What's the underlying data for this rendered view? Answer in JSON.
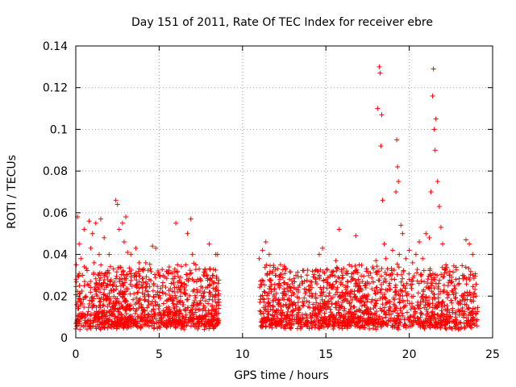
{
  "chart_data": {
    "type": "scatter",
    "title": "Day 151 of 2011, Rate Of TEC Index for receiver ebre",
    "xlabel": "GPS time / hours",
    "ylabel": "ROTI / TECUs",
    "xlim": [
      0,
      25
    ],
    "ylim": [
      0,
      0.14
    ],
    "x_ticks": [
      "0",
      "5",
      "10",
      "15",
      "20",
      "25"
    ],
    "y_ticks": [
      "0",
      "0.02",
      "0.04",
      "0.06",
      "0.08",
      "0.1",
      "0.12",
      "0.14"
    ],
    "grid": true,
    "marker": "+",
    "color": "#ff0000",
    "series": [
      {
        "name": "ROTI",
        "points": [
          [
            0.1,
            0.058
          ],
          [
            0.2,
            0.045
          ],
          [
            0.3,
            0.038
          ],
          [
            0.4,
            0.03
          ],
          [
            0.5,
            0.052
          ],
          [
            0.6,
            0.02
          ],
          [
            0.8,
            0.056
          ],
          [
            0.9,
            0.043
          ],
          [
            1.0,
            0.05
          ],
          [
            1.1,
            0.036
          ],
          [
            1.2,
            0.055
          ],
          [
            1.4,
            0.04
          ],
          [
            1.5,
            0.057
          ],
          [
            1.7,
            0.048
          ],
          [
            1.8,
            0.031
          ],
          [
            2.0,
            0.04
          ],
          [
            2.2,
            0.025
          ],
          [
            2.4,
            0.066
          ],
          [
            2.5,
            0.064
          ],
          [
            2.6,
            0.052
          ],
          [
            2.8,
            0.055
          ],
          [
            2.9,
            0.046
          ],
          [
            3.0,
            0.058
          ],
          [
            3.1,
            0.041
          ],
          [
            3.3,
            0.04
          ],
          [
            3.5,
            0.03
          ],
          [
            3.6,
            0.043
          ],
          [
            3.8,
            0.036
          ],
          [
            4.0,
            0.024
          ],
          [
            4.2,
            0.036
          ],
          [
            4.4,
            0.028
          ],
          [
            4.6,
            0.044
          ],
          [
            4.8,
            0.043
          ],
          [
            5.0,
            0.03
          ],
          [
            5.2,
            0.022
          ],
          [
            5.4,
            0.021
          ],
          [
            5.6,
            0.034
          ],
          [
            5.8,
            0.031
          ],
          [
            6.0,
            0.055
          ],
          [
            6.1,
            0.035
          ],
          [
            6.3,
            0.022
          ],
          [
            6.5,
            0.026
          ],
          [
            6.7,
            0.05
          ],
          [
            6.9,
            0.057
          ],
          [
            7.0,
            0.04
          ],
          [
            7.2,
            0.035
          ],
          [
            7.4,
            0.033
          ],
          [
            7.6,
            0.024
          ],
          [
            7.8,
            0.024
          ],
          [
            8.0,
            0.045
          ],
          [
            8.2,
            0.03
          ],
          [
            8.4,
            0.04
          ],
          [
            8.5,
            0.04
          ],
          [
            11.0,
            0.038
          ],
          [
            11.2,
            0.042
          ],
          [
            11.4,
            0.046
          ],
          [
            11.6,
            0.04
          ],
          [
            11.8,
            0.032
          ],
          [
            12.0,
            0.03
          ],
          [
            12.2,
            0.024
          ],
          [
            12.4,
            0.019
          ],
          [
            12.6,
            0.016
          ],
          [
            12.8,
            0.018
          ],
          [
            13.0,
            0.016
          ],
          [
            13.2,
            0.03
          ],
          [
            13.4,
            0.019
          ],
          [
            13.6,
            0.026
          ],
          [
            13.8,
            0.022
          ],
          [
            14.0,
            0.017
          ],
          [
            14.2,
            0.02
          ],
          [
            14.4,
            0.019
          ],
          [
            14.6,
            0.04
          ],
          [
            14.8,
            0.043
          ],
          [
            15.0,
            0.028
          ],
          [
            15.2,
            0.025
          ],
          [
            15.4,
            0.03
          ],
          [
            15.6,
            0.037
          ],
          [
            15.8,
            0.052
          ],
          [
            16.0,
            0.03
          ],
          [
            16.2,
            0.031
          ],
          [
            16.4,
            0.035
          ],
          [
            16.6,
            0.028
          ],
          [
            16.8,
            0.049
          ],
          [
            17.0,
            0.025
          ],
          [
            17.2,
            0.027
          ],
          [
            17.4,
            0.024
          ],
          [
            17.6,
            0.026
          ],
          [
            17.8,
            0.034
          ],
          [
            18.0,
            0.037
          ],
          [
            18.1,
            0.11
          ],
          [
            18.2,
            0.13
          ],
          [
            18.25,
            0.127
          ],
          [
            18.3,
            0.092
          ],
          [
            18.35,
            0.107
          ],
          [
            18.4,
            0.066
          ],
          [
            18.5,
            0.045
          ],
          [
            18.6,
            0.038
          ],
          [
            18.8,
            0.03
          ],
          [
            19.0,
            0.042
          ],
          [
            19.2,
            0.07
          ],
          [
            19.25,
            0.095
          ],
          [
            19.3,
            0.082
          ],
          [
            19.35,
            0.075
          ],
          [
            19.4,
            0.04
          ],
          [
            19.5,
            0.054
          ],
          [
            19.6,
            0.05
          ],
          [
            19.8,
            0.038
          ],
          [
            20.0,
            0.042
          ],
          [
            20.2,
            0.036
          ],
          [
            20.4,
            0.04
          ],
          [
            20.6,
            0.046
          ],
          [
            20.8,
            0.038
          ],
          [
            21.0,
            0.05
          ],
          [
            21.2,
            0.048
          ],
          [
            21.3,
            0.07
          ],
          [
            21.4,
            0.116
          ],
          [
            21.45,
            0.129
          ],
          [
            21.5,
            0.1
          ],
          [
            21.55,
            0.09
          ],
          [
            21.6,
            0.105
          ],
          [
            21.7,
            0.075
          ],
          [
            21.8,
            0.063
          ],
          [
            21.9,
            0.053
          ],
          [
            22.0,
            0.045
          ],
          [
            22.2,
            0.035
          ],
          [
            22.4,
            0.03
          ],
          [
            22.6,
            0.022
          ],
          [
            22.8,
            0.028
          ],
          [
            23.0,
            0.026
          ],
          [
            23.2,
            0.03
          ],
          [
            23.4,
            0.047
          ],
          [
            23.6,
            0.045
          ],
          [
            23.8,
            0.04
          ],
          [
            24.0,
            0.02
          ]
        ]
      }
    ]
  }
}
